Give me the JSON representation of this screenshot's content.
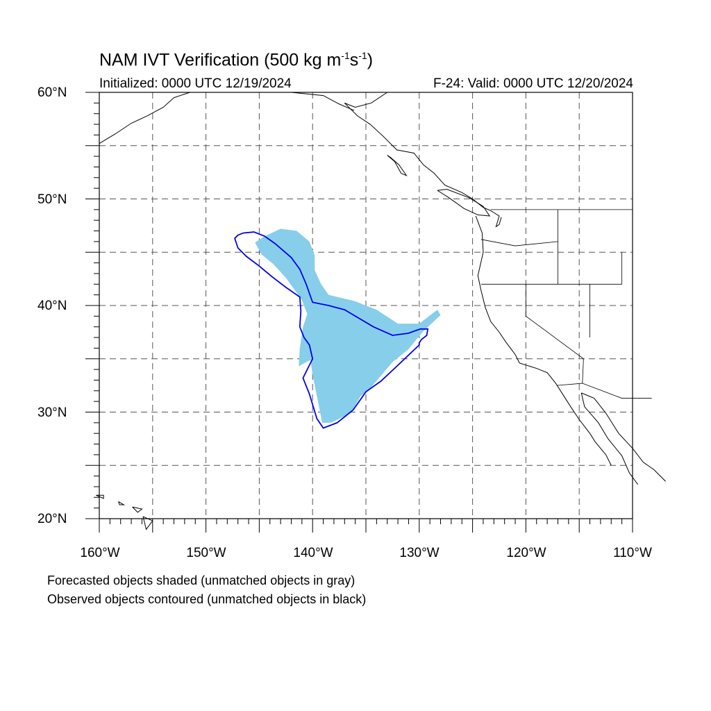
{
  "title": {
    "main": "NAM IVT Verification (500 kg m",
    "exp1": "-1",
    "mid": "s",
    "exp2": "-1",
    "end": ")"
  },
  "subtitle": {
    "left": "Initialized: 0000 UTC 12/19/2024",
    "right": "F-24: Valid: 0000 UTC 12/20/2024"
  },
  "axes": {
    "lat_labels": [
      "60°N",
      "50°N",
      "40°N",
      "30°N",
      "20°N"
    ],
    "lon_labels": [
      "160°W",
      "150°W",
      "140°W",
      "130°W",
      "120°W",
      "110°W"
    ],
    "lat_range": [
      20,
      60
    ],
    "lon_range": [
      -160,
      -110
    ],
    "grid": "dashed every 5 degrees"
  },
  "legend_notes": [
    "Forecasted objects shaded (unmatched objects in gray)",
    "Observed objects contoured (unmatched objects in black)"
  ],
  "colors": {
    "forecast_fill": "#87ceeb",
    "observed_contour": "#0000ee",
    "coastline": "#000000",
    "grid": "#555555"
  },
  "chart_data": {
    "type": "map",
    "projection": "cylindrical equidistant",
    "forecast_object": {
      "matched": true,
      "approx_extent_lon": [
        -145.5,
        -128
      ],
      "approx_extent_lat": [
        28.5,
        47.3
      ],
      "outline_lonlat": [
        [
          -144.5,
          46.5
        ],
        [
          -143,
          47.2
        ],
        [
          -141.5,
          47.0
        ],
        [
          -140.3,
          46.0
        ],
        [
          -139.8,
          44.7
        ],
        [
          -139.8,
          43.3
        ],
        [
          -139.2,
          42.0
        ],
        [
          -138.5,
          41.0
        ],
        [
          -136.0,
          40.4
        ],
        [
          -134,
          39.6
        ],
        [
          -132,
          38.3
        ],
        [
          -130,
          38.3
        ],
        [
          -128.3,
          39.6
        ],
        [
          -128,
          39.1
        ],
        [
          -129.7,
          37.5
        ],
        [
          -131,
          35.9
        ],
        [
          -132.5,
          34.7
        ],
        [
          -134.7,
          32.1
        ],
        [
          -135.5,
          31.5
        ],
        [
          -136.4,
          29.9
        ],
        [
          -138.3,
          29.0
        ],
        [
          -139.1,
          29.0
        ],
        [
          -139.5,
          31.0
        ],
        [
          -140.0,
          33.5
        ],
        [
          -140.2,
          34.9
        ],
        [
          -141.3,
          34.3
        ],
        [
          -141.2,
          36.0
        ],
        [
          -140.9,
          38.0
        ],
        [
          -140.5,
          39.2
        ],
        [
          -141,
          40.5
        ],
        [
          -142.5,
          42.6
        ],
        [
          -143.7,
          43.9
        ],
        [
          -144.8,
          44.8
        ],
        [
          -145.4,
          45.9
        ]
      ]
    },
    "observed_object": {
      "matched": true,
      "outline_lonlat": [
        [
          -147,
          46.6
        ],
        [
          -146.5,
          46.8
        ],
        [
          -145.5,
          46.9
        ],
        [
          -144.5,
          46.5
        ],
        [
          -143.5,
          45.8
        ],
        [
          -142.0,
          44.5
        ],
        [
          -141.2,
          43.4
        ],
        [
          -140.6,
          42.0
        ],
        [
          -140.0,
          40.3
        ],
        [
          -138.5,
          40.0
        ],
        [
          -137.0,
          39.6
        ],
        [
          -134.3,
          38.0
        ],
        [
          -132.5,
          37.2
        ],
        [
          -131,
          37.4
        ],
        [
          -129.9,
          37.8
        ],
        [
          -129.2,
          37.8
        ],
        [
          -129.3,
          37.2
        ],
        [
          -129.8,
          36.8
        ],
        [
          -130.0,
          36.5
        ],
        [
          -130.0,
          36.3
        ],
        [
          -132,
          34.4
        ],
        [
          -133.6,
          32.9
        ],
        [
          -135.0,
          31.9
        ],
        [
          -136.2,
          30.2
        ],
        [
          -137.7,
          29.0
        ],
        [
          -139.0,
          28.5
        ],
        [
          -139.6,
          29.4
        ],
        [
          -140.3,
          31.7
        ],
        [
          -140.9,
          33.2
        ],
        [
          -140.0,
          35.0
        ],
        [
          -140.3,
          36.3
        ],
        [
          -140.8,
          37.0
        ],
        [
          -141.2,
          38.0
        ],
        [
          -141.1,
          39.5
        ],
        [
          -141.2,
          40.8
        ],
        [
          -142.5,
          41.7
        ],
        [
          -143.8,
          42.7
        ],
        [
          -145.0,
          43.7
        ],
        [
          -146.2,
          44.6
        ],
        [
          -147.0,
          45.4
        ],
        [
          -147.3,
          46.3
        ]
      ]
    }
  }
}
